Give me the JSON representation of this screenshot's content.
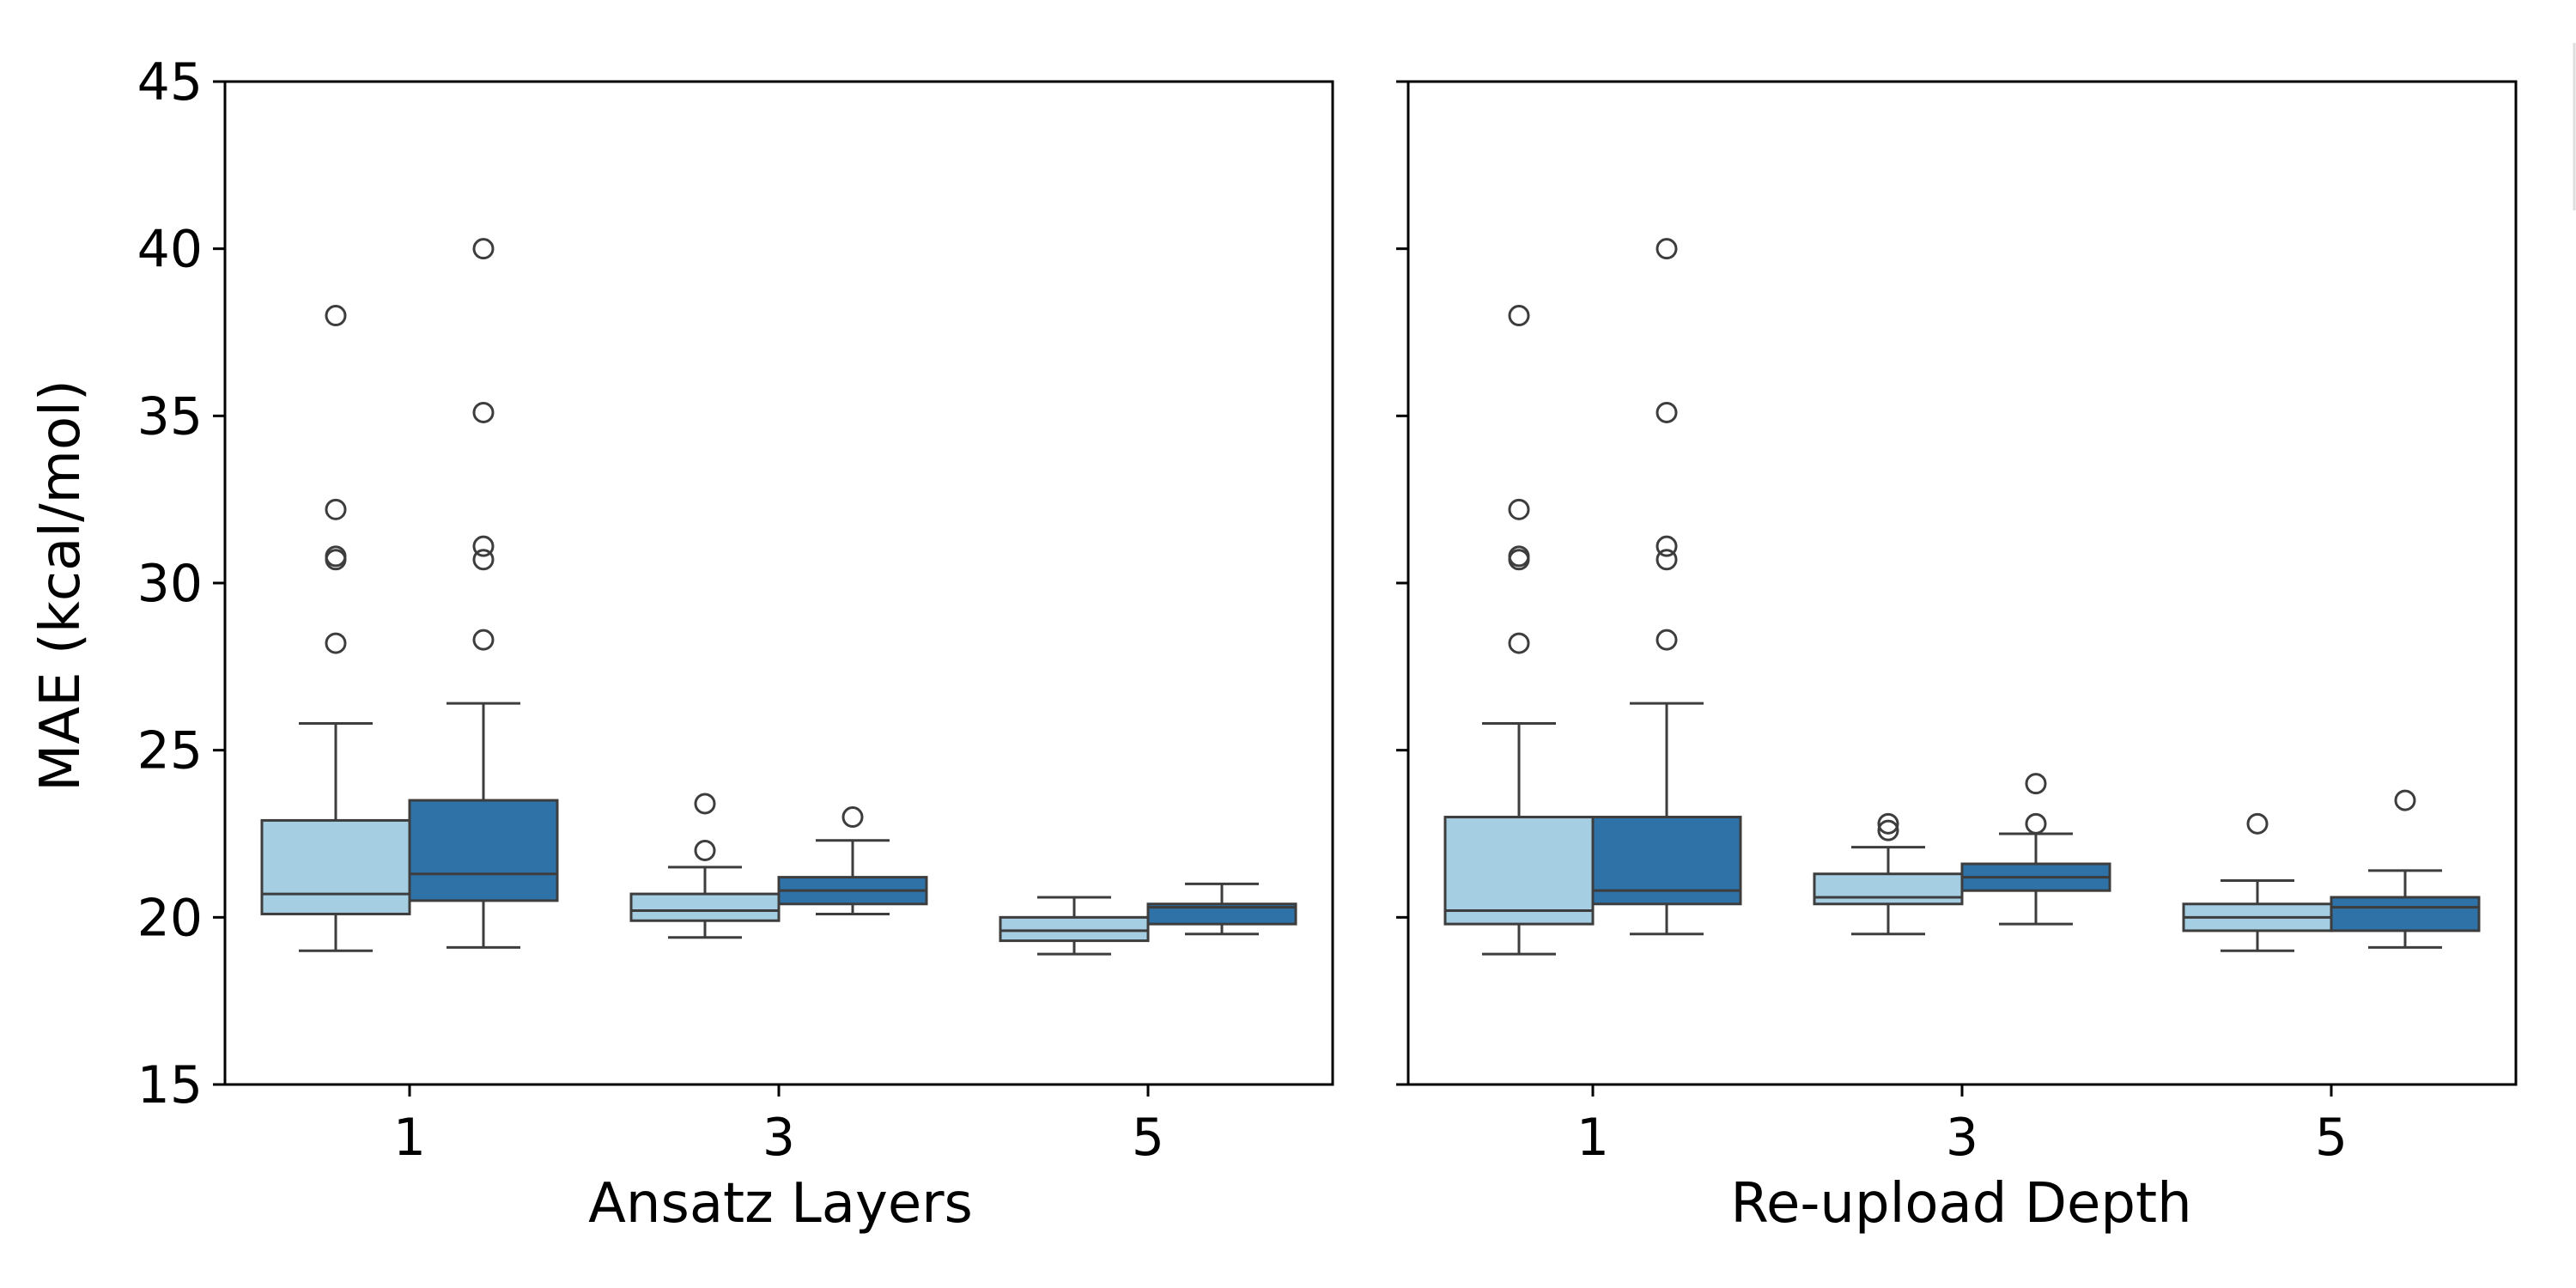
{
  "chart_data": [
    {
      "type": "box",
      "xlabel": "Ansatz Layers",
      "ylabel": "MAE (kcal/mol)",
      "categories": [
        "1",
        "3",
        "5"
      ],
      "ylim": [
        15,
        45
      ],
      "yticks": [
        15,
        20,
        25,
        30,
        35,
        40,
        45
      ],
      "grid": false,
      "series": [
        {
          "color": "#a6cee3",
          "boxes": [
            {
              "whisker_low": 19.0,
              "q1": 20.1,
              "median": 20.7,
              "q3": 22.9,
              "whisker_high": 25.8,
              "outliers": [
                38.0,
                32.2,
                30.8,
                30.7,
                28.2
              ]
            },
            {
              "whisker_low": 19.4,
              "q1": 19.9,
              "median": 20.2,
              "q3": 20.7,
              "whisker_high": 21.5,
              "outliers": [
                23.4,
                22.0
              ]
            },
            {
              "whisker_low": 18.9,
              "q1": 19.3,
              "median": 19.6,
              "q3": 20.0,
              "whisker_high": 20.6,
              "outliers": []
            }
          ]
        },
        {
          "color": "#2e72a8",
          "boxes": [
            {
              "whisker_low": 19.1,
              "q1": 20.5,
              "median": 21.3,
              "q3": 23.5,
              "whisker_high": 26.4,
              "outliers": [
                40.0,
                35.1,
                31.1,
                30.7,
                28.3
              ]
            },
            {
              "whisker_low": 20.1,
              "q1": 20.4,
              "median": 20.8,
              "q3": 21.2,
              "whisker_high": 22.3,
              "outliers": [
                23.0
              ]
            },
            {
              "whisker_low": 19.5,
              "q1": 19.8,
              "median": 20.3,
              "q3": 20.4,
              "whisker_high": 21.0,
              "outliers": []
            }
          ]
        }
      ]
    },
    {
      "type": "box",
      "xlabel": "Re-upload Depth",
      "ylabel": "",
      "categories": [
        "1",
        "3",
        "5"
      ],
      "ylim": [
        15,
        45
      ],
      "yticks": [
        15,
        20,
        25,
        30,
        35,
        40,
        45
      ],
      "grid": false,
      "series": [
        {
          "color": "#a6cee3",
          "boxes": [
            {
              "whisker_low": 18.9,
              "q1": 19.8,
              "median": 20.2,
              "q3": 23.0,
              "whisker_high": 25.8,
              "outliers": [
                38.0,
                32.2,
                30.8,
                30.7,
                28.2
              ]
            },
            {
              "whisker_low": 19.5,
              "q1": 20.4,
              "median": 20.6,
              "q3": 21.3,
              "whisker_high": 22.1,
              "outliers": [
                22.8,
                22.6
              ]
            },
            {
              "whisker_low": 19.0,
              "q1": 19.6,
              "median": 20.0,
              "q3": 20.4,
              "whisker_high": 21.1,
              "outliers": [
                22.8
              ]
            }
          ]
        },
        {
          "color": "#2e72a8",
          "boxes": [
            {
              "whisker_low": 19.5,
              "q1": 20.4,
              "median": 20.8,
              "q3": 23.0,
              "whisker_high": 26.4,
              "outliers": [
                40.0,
                35.1,
                31.1,
                30.7,
                28.3
              ]
            },
            {
              "whisker_low": 19.8,
              "q1": 20.8,
              "median": 21.2,
              "q3": 21.6,
              "whisker_high": 22.5,
              "outliers": [
                24.0,
                22.8
              ]
            },
            {
              "whisker_low": 19.1,
              "q1": 19.6,
              "median": 20.3,
              "q3": 20.6,
              "whisker_high": 21.4,
              "outliers": [
                23.5
              ]
            }
          ]
        }
      ]
    }
  ]
}
